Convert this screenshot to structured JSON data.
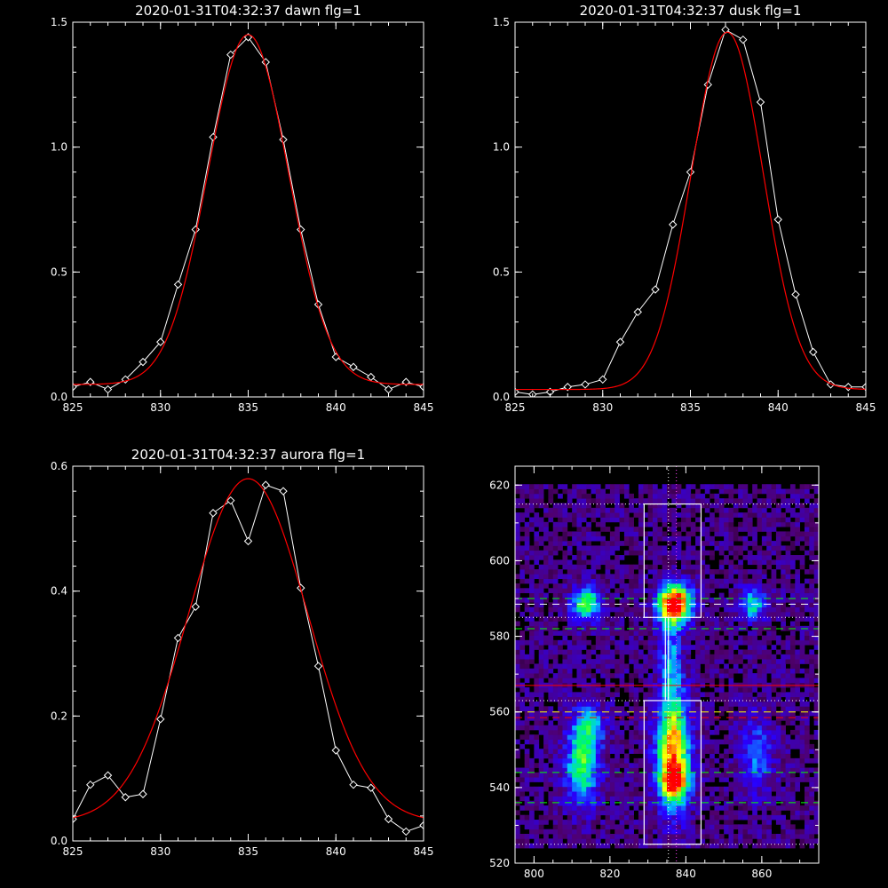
{
  "chart_data": [
    {
      "type": "line",
      "title": "2020-01-31T04:32:37 dawn flg=1",
      "xlim": [
        825,
        845
      ],
      "ylim": [
        0,
        1.5
      ],
      "xticks": [
        "825",
        "830",
        "835",
        "840",
        "845"
      ],
      "yticks": [
        "0.0",
        "0.5",
        "1.0",
        "1.5"
      ],
      "series": [
        {
          "color": "#ffffff",
          "markers": "diamond",
          "x": [
            825,
            826,
            827,
            828,
            829,
            830,
            831,
            832,
            833,
            834,
            835,
            836,
            837,
            838,
            839,
            840,
            841,
            842,
            843,
            844,
            845
          ],
          "y": [
            0.04,
            0.06,
            0.03,
            0.07,
            0.14,
            0.22,
            0.45,
            0.67,
            1.04,
            1.37,
            1.44,
            1.34,
            1.03,
            0.67,
            0.37,
            0.16,
            0.12,
            0.08,
            0.03,
            0.06,
            0.04
          ]
        },
        {
          "color": "#ff0000",
          "fit": "gaussian",
          "amp": 1.4,
          "center": 835,
          "sigma": 2.3,
          "offset": 0.05
        }
      ]
    },
    {
      "type": "line",
      "title": "2020-01-31T04:32:37 dusk flg=1",
      "xlim": [
        825,
        845
      ],
      "ylim": [
        0,
        1.5
      ],
      "xticks": [
        "825",
        "830",
        "835",
        "840",
        "845"
      ],
      "yticks": [
        "0.0",
        "0.5",
        "1.0",
        "1.5"
      ],
      "series": [
        {
          "color": "#ffffff",
          "markers": "diamond",
          "x": [
            825,
            826,
            827,
            828,
            829,
            830,
            831,
            832,
            833,
            834,
            835,
            836,
            837,
            838,
            839,
            840,
            841,
            842,
            843,
            844,
            845
          ],
          "y": [
            0.02,
            0.01,
            0.02,
            0.04,
            0.05,
            0.07,
            0.22,
            0.34,
            0.43,
            0.69,
            0.9,
            1.25,
            1.47,
            1.43,
            1.18,
            0.71,
            0.41,
            0.18,
            0.05,
            0.04,
            0.04
          ]
        },
        {
          "color": "#ff0000",
          "fit": "gaussian",
          "amp": 1.43,
          "center": 837.1,
          "sigma": 2.05,
          "offset": 0.03
        }
      ]
    },
    {
      "type": "line",
      "title": "2020-01-31T04:32:37 aurora flg=1",
      "xlim": [
        825,
        845
      ],
      "ylim": [
        0,
        0.6
      ],
      "xticks": [
        "825",
        "830",
        "835",
        "840",
        "845"
      ],
      "yticks": [
        "0.0",
        "0.2",
        "0.4",
        "0.6"
      ],
      "series": [
        {
          "color": "#ffffff",
          "markers": "diamond",
          "x": [
            825,
            826,
            827,
            828,
            829,
            830,
            831,
            832,
            833,
            834,
            835,
            836,
            837,
            838,
            839,
            840,
            841,
            842,
            843,
            844,
            845
          ],
          "y": [
            0.035,
            0.09,
            0.105,
            0.07,
            0.075,
            0.195,
            0.325,
            0.375,
            0.525,
            0.545,
            0.48,
            0.57,
            0.56,
            0.405,
            0.28,
            0.145,
            0.09,
            0.085,
            0.035,
            0.015,
            0.025
          ]
        },
        {
          "color": "#ff0000",
          "fit": "gaussian",
          "amp": 0.55,
          "center": 835,
          "sigma": 3.4,
          "offset": 0.03
        }
      ]
    },
    {
      "type": "heatmap",
      "xlim": [
        795,
        875
      ],
      "ylim": [
        520,
        625
      ],
      "xticks": [
        "800",
        "820",
        "840",
        "860"
      ],
      "yticks": [
        "520",
        "540",
        "560",
        "580",
        "600",
        "620"
      ],
      "colormap": "rainbow",
      "blobs": [
        {
          "x": 813,
          "y": 588,
          "sx": 2.5,
          "sy": 3,
          "amp": 0.55
        },
        {
          "x": 836.5,
          "y": 588,
          "sx": 3,
          "sy": 3.5,
          "amp": 1.0
        },
        {
          "x": 857,
          "y": 588,
          "sx": 2.5,
          "sy": 3,
          "amp": 0.4
        },
        {
          "x": 836,
          "y": 549,
          "sx": 3,
          "sy": 10,
          "amp": 0.75
        },
        {
          "x": 836.5,
          "y": 541,
          "sx": 2.5,
          "sy": 3,
          "amp": 0.55
        },
        {
          "x": 812,
          "y": 545,
          "sx": 3,
          "sy": 7,
          "amp": 0.5
        },
        {
          "x": 814,
          "y": 556,
          "sx": 3,
          "sy": 4,
          "amp": 0.3
        },
        {
          "x": 858,
          "y": 548,
          "sx": 3,
          "sy": 7,
          "amp": 0.25
        },
        {
          "x": 835.5,
          "y": 573,
          "sx": 2,
          "sy": 9,
          "amp": 0.28
        }
      ],
      "boxes": [
        {
          "x0": 829,
          "x1": 844,
          "y0": 585,
          "y1": 615,
          "color": "#ffffff"
        },
        {
          "x0": 829,
          "x1": 844,
          "y0": 525,
          "y1": 563,
          "color": "#ffffff"
        }
      ],
      "center_segment": {
        "x0": 834.6,
        "x1": 835.4,
        "y0": 563,
        "y1": 585,
        "color": "#ffffff"
      },
      "vlines": [
        {
          "x": 835.4,
          "color": "#ffffff",
          "style": "dotted"
        },
        {
          "x": 837.5,
          "color": "#ff44ff",
          "style": "dotted"
        }
      ],
      "hlines": [
        {
          "y": 615,
          "color": "#ffffff",
          "style": "dotted"
        },
        {
          "y": 590,
          "color": "#00ff00",
          "style": "dashed"
        },
        {
          "y": 588.5,
          "color": "#ffffff",
          "style": "dashed"
        },
        {
          "y": 585,
          "color": "#ffffff",
          "style": "dotted"
        },
        {
          "y": 582,
          "color": "#00ff00",
          "style": "dashed"
        },
        {
          "y": 567,
          "color": "#ff0000",
          "style": "solid"
        },
        {
          "y": 563,
          "color": "#ffffff",
          "style": "dotted"
        },
        {
          "y": 560,
          "color": "#ffff00",
          "style": "dashed"
        },
        {
          "y": 558.5,
          "color": "#ff0000",
          "style": "dashed"
        },
        {
          "y": 544,
          "color": "#00ff00",
          "style": "dashed"
        },
        {
          "y": 536,
          "color": "#00ff00",
          "style": "dashed"
        },
        {
          "y": 525,
          "color": "#ffffff",
          "style": "dotted"
        }
      ]
    }
  ]
}
